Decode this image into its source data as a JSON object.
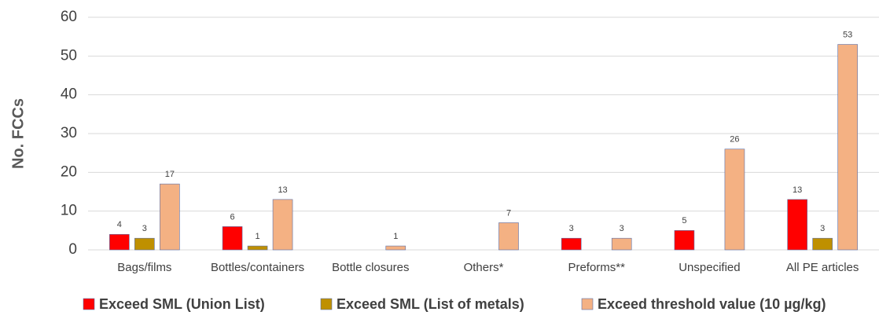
{
  "chart_data": {
    "type": "bar",
    "y_label": "No. FCCs",
    "categories": [
      "Bags/films",
      "Bottles/containers",
      "Bottle closures",
      "Others*",
      "Preforms**",
      "Unspecified",
      "All PE articles"
    ],
    "series": [
      {
        "name": "Exceed SML (Union List)",
        "color": "#ff0000",
        "values": [
          4,
          6,
          null,
          null,
          3,
          5,
          13
        ]
      },
      {
        "name": "Exceed SML (List of metals)",
        "color": "#bf9000",
        "values": [
          3,
          1,
          null,
          null,
          null,
          null,
          3
        ]
      },
      {
        "name": "Exceed threshold value (10 µg/kg)",
        "color": "#f4b183",
        "values": [
          17,
          13,
          1,
          7,
          3,
          26,
          53
        ]
      }
    ],
    "ylim": [
      0,
      60
    ],
    "yticks": [
      0,
      10,
      20,
      30,
      40,
      50,
      60
    ],
    "grid": true
  }
}
